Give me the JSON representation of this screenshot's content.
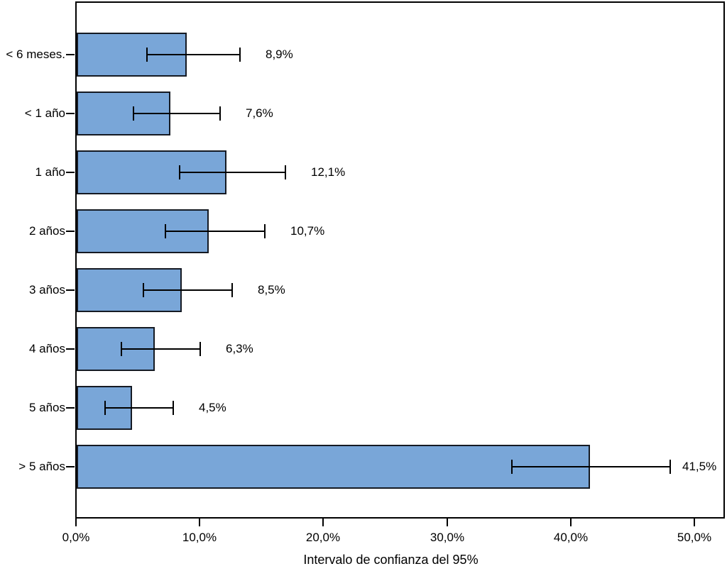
{
  "chart_data": {
    "type": "bar",
    "orientation": "horizontal",
    "title": "",
    "xlabel": "Intervalo de confianza del 95%",
    "ylabel": "",
    "categories": [
      "< 6 meses.",
      "< 1 año",
      "1 año",
      "2 años",
      "3 años",
      "4 años",
      "5 años",
      "> 5 años"
    ],
    "values": [
      8.9,
      7.6,
      12.1,
      10.7,
      8.5,
      6.3,
      4.5,
      41.5
    ],
    "value_labels": [
      "8,9%",
      "7,6%",
      "12,1%",
      "10,7%",
      "8,5%",
      "6,3%",
      "4,5%",
      "41,5%"
    ],
    "error_low": [
      5.7,
      4.6,
      8.3,
      7.2,
      5.4,
      3.6,
      2.3,
      35.2
    ],
    "error_high": [
      13.2,
      11.6,
      16.9,
      15.2,
      12.6,
      10.0,
      7.8,
      48.0
    ],
    "x_tick_labels": [
      "0,0%",
      "10,0%",
      "20,0%",
      "30,0%",
      "40,0%",
      "50,0%"
    ],
    "x_tick_values": [
      0,
      10,
      20,
      30,
      40,
      50
    ],
    "xlim": [
      0,
      52.3
    ],
    "grid": false,
    "legend": null,
    "colors": {
      "bar_fill": "#79A6D8",
      "bar_border": "#151A23",
      "error_bar": "#000000",
      "frame": "#000000",
      "text": "#000000",
      "background": "#FFFFFF"
    }
  }
}
